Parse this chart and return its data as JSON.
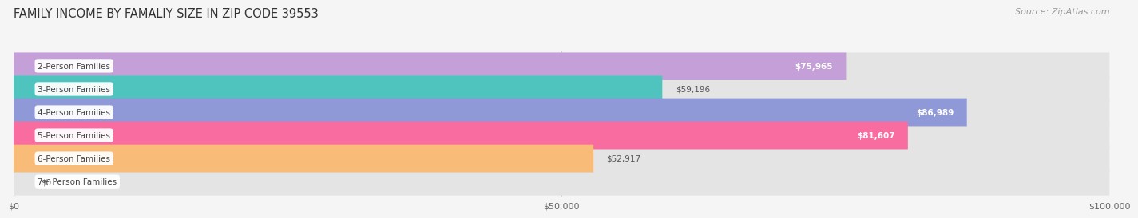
{
  "title": "FAMILY INCOME BY FAMALIY SIZE IN ZIP CODE 39553",
  "source": "Source: ZipAtlas.com",
  "categories": [
    "2-Person Families",
    "3-Person Families",
    "4-Person Families",
    "5-Person Families",
    "6-Person Families",
    "7+ Person Families"
  ],
  "values": [
    75965,
    59196,
    86989,
    81607,
    52917,
    0
  ],
  "bar_colors": [
    "#c49fd8",
    "#4fc4bf",
    "#9099d8",
    "#f96ca0",
    "#f9bc78",
    "#f5a8a8"
  ],
  "value_labels": [
    "$75,965",
    "$59,196",
    "$86,989",
    "$81,607",
    "$52,917",
    "$0"
  ],
  "label_inside": [
    true,
    false,
    true,
    true,
    false,
    false
  ],
  "xlim": [
    0,
    100000
  ],
  "xticks": [
    0,
    50000,
    100000
  ],
  "xtick_labels": [
    "$0",
    "$50,000",
    "$100,000"
  ],
  "background_color": "#f5f5f5",
  "bar_background": "#e4e4e4",
  "title_fontsize": 10.5,
  "source_fontsize": 8
}
